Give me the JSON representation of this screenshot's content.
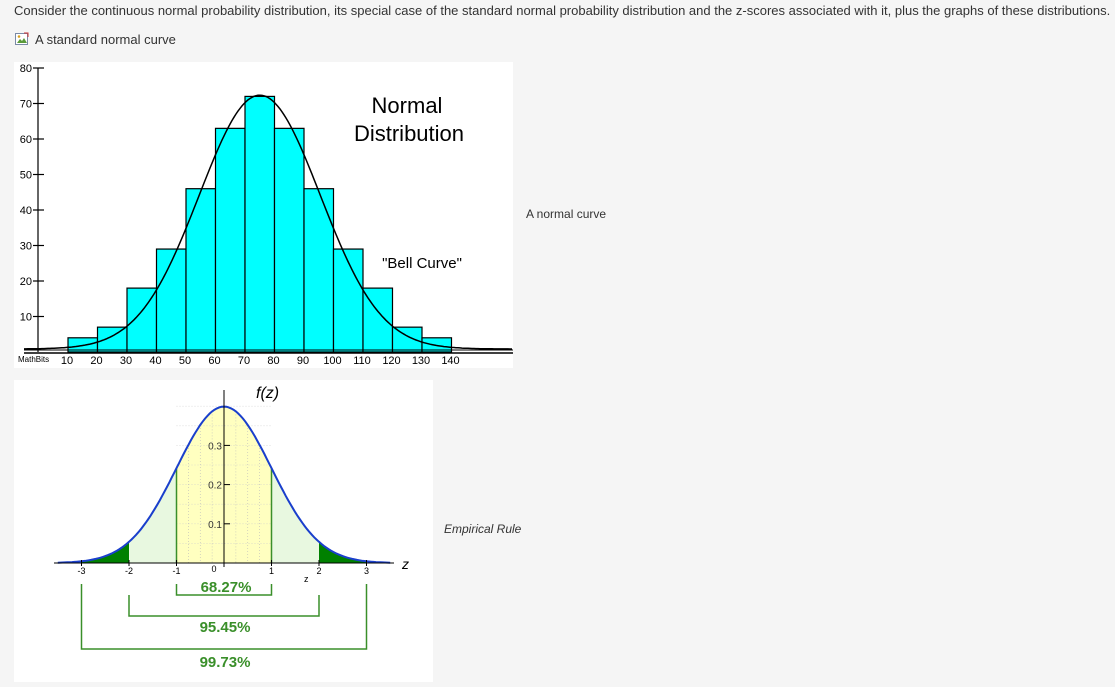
{
  "intro_text": "Consider the continuous normal probability distribution, its special case of the standard normal probability distribution and the z-scores associated with it, plus the graphs of these distributions.",
  "broken_image_alt": "A standard normal curve",
  "figure1": {
    "title_line1": "Normal",
    "title_line2": "Distribution",
    "annotation": "\"Bell Curve\"",
    "watermark": "MathBits",
    "caption": "A normal curve",
    "chart_data": {
      "type": "bar",
      "categories": [
        "10",
        "20",
        "30",
        "40",
        "50",
        "60",
        "70",
        "80",
        "90",
        "100",
        "110",
        "120",
        "130",
        "140"
      ],
      "values": [
        4,
        7,
        18,
        29,
        46,
        63,
        72,
        63,
        46,
        29,
        18,
        7,
        4,
        0
      ],
      "ylim": [
        0,
        80
      ],
      "yticks": [
        10,
        20,
        30,
        40,
        50,
        60,
        70,
        80
      ],
      "bar_color": "#00ffff",
      "curve": "normal overlay"
    }
  },
  "figure2": {
    "y_axis_label": "f(z)",
    "x_axis_label": "z",
    "inner_z_label": "z",
    "caption": "Empirical Rule",
    "pct_1sd": "68.27%",
    "pct_2sd": "95.45%",
    "pct_3sd": "99.73%",
    "chart_data": {
      "type": "area",
      "x_ticks": [
        "-3",
        "-2",
        "-1",
        "0",
        "1",
        "2",
        "3"
      ],
      "y_ticks": [
        "0.1",
        "0.2",
        "0.3"
      ],
      "xlim": [
        -3,
        3
      ],
      "ylim": [
        0,
        0.4
      ],
      "colors": {
        "curve": "#1a3fcc",
        "band1": "#ffffc0",
        "band2": "#e8f8e0",
        "band3": "#008000",
        "bracket": "#3a8f2a"
      }
    }
  }
}
